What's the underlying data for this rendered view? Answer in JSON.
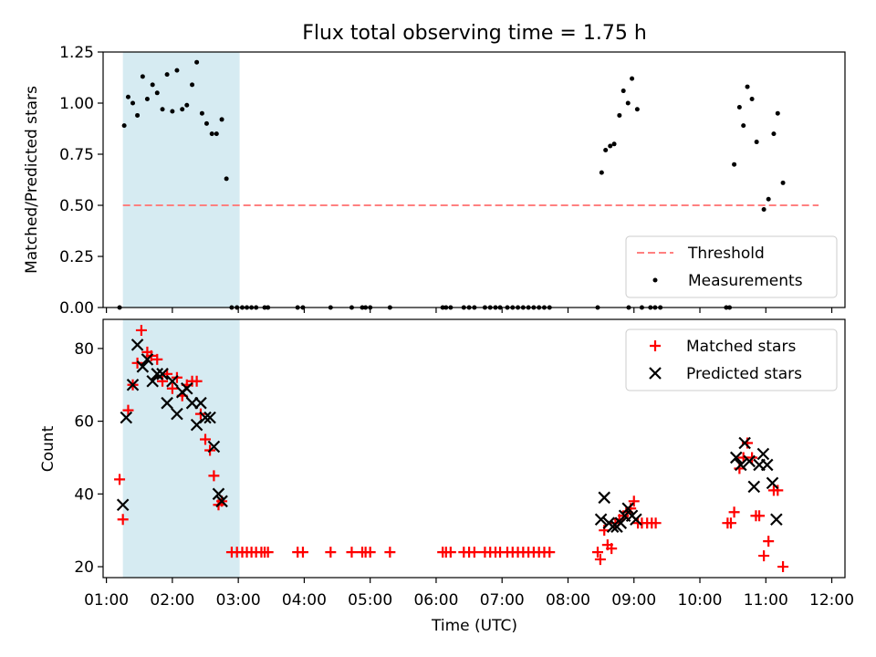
{
  "title": "Flux total observing time = 1.75 h",
  "x_axis": {
    "label": "Time (UTC)",
    "range_hours": [
      0.95,
      12.2
    ],
    "ticks": [
      {
        "value": 1,
        "label": "01:00"
      },
      {
        "value": 2,
        "label": "02:00"
      },
      {
        "value": 3,
        "label": "03:00"
      },
      {
        "value": 4,
        "label": "04:00"
      },
      {
        "value": 5,
        "label": "05:00"
      },
      {
        "value": 6,
        "label": "06:00"
      },
      {
        "value": 7,
        "label": "07:00"
      },
      {
        "value": 8,
        "label": "08:00"
      },
      {
        "value": 9,
        "label": "09:00"
      },
      {
        "value": 10,
        "label": "10:00"
      },
      {
        "value": 11,
        "label": "11:00"
      },
      {
        "value": 12,
        "label": "12:00"
      }
    ]
  },
  "observing_window_hours": [
    1.25,
    3.02
  ],
  "colors": {
    "window": "#add8e6",
    "threshold": "#ff8080",
    "measurements": "#000000",
    "matched": "#ff0000",
    "predicted": "#000000"
  },
  "chart_data": [
    {
      "type": "scatter",
      "ylabel": "Matched/Predicted stars",
      "ylim": [
        0,
        1.25
      ],
      "yticks": [
        {
          "value": 0,
          "label": "0.00"
        },
        {
          "value": 0.25,
          "label": "0.25"
        },
        {
          "value": 0.5,
          "label": "0.50"
        },
        {
          "value": 0.75,
          "label": "0.75"
        },
        {
          "value": 1.0,
          "label": "1.00"
        },
        {
          "value": 1.25,
          "label": "1.25"
        }
      ],
      "threshold": {
        "value": 0.5,
        "x_range": [
          1.25,
          11.8
        ]
      },
      "legend": {
        "position": "lower right",
        "entries": [
          "Threshold",
          "Measurements"
        ]
      },
      "series": [
        {
          "name": "Measurements",
          "points": [
            [
              1.2,
              0.0
            ],
            [
              1.27,
              0.89
            ],
            [
              1.33,
              1.03
            ],
            [
              1.4,
              1.0
            ],
            [
              1.47,
              0.94
            ],
            [
              1.55,
              1.13
            ],
            [
              1.62,
              1.02
            ],
            [
              1.7,
              1.09
            ],
            [
              1.77,
              1.05
            ],
            [
              1.85,
              0.97
            ],
            [
              1.92,
              1.14
            ],
            [
              2.0,
              0.96
            ],
            [
              2.07,
              1.16
            ],
            [
              2.15,
              0.97
            ],
            [
              2.22,
              0.99
            ],
            [
              2.3,
              1.09
            ],
            [
              2.37,
              1.2
            ],
            [
              2.45,
              0.95
            ],
            [
              2.52,
              0.9
            ],
            [
              2.6,
              0.85
            ],
            [
              2.67,
              0.85
            ],
            [
              2.75,
              0.92
            ],
            [
              2.82,
              0.63
            ],
            [
              2.9,
              0.0
            ],
            [
              2.98,
              0.0
            ],
            [
              3.06,
              0.0
            ],
            [
              3.13,
              0.0
            ],
            [
              3.2,
              0.0
            ],
            [
              3.27,
              0.0
            ],
            [
              3.4,
              0.0
            ],
            [
              3.45,
              0.0
            ],
            [
              3.9,
              0.0
            ],
            [
              3.98,
              0.0
            ],
            [
              4.4,
              0.0
            ],
            [
              4.72,
              0.0
            ],
            [
              4.88,
              0.0
            ],
            [
              4.93,
              0.0
            ],
            [
              5.0,
              0.0
            ],
            [
              5.3,
              0.0
            ],
            [
              6.1,
              0.0
            ],
            [
              6.15,
              0.0
            ],
            [
              6.22,
              0.0
            ],
            [
              6.42,
              0.0
            ],
            [
              6.5,
              0.0
            ],
            [
              6.58,
              0.0
            ],
            [
              6.74,
              0.0
            ],
            [
              6.82,
              0.0
            ],
            [
              6.9,
              0.0
            ],
            [
              6.97,
              0.0
            ],
            [
              7.08,
              0.0
            ],
            [
              7.16,
              0.0
            ],
            [
              7.24,
              0.0
            ],
            [
              7.32,
              0.0
            ],
            [
              7.4,
              0.0
            ],
            [
              7.48,
              0.0
            ],
            [
              7.56,
              0.0
            ],
            [
              7.64,
              0.0
            ],
            [
              7.72,
              0.0
            ],
            [
              8.45,
              0.0
            ],
            [
              8.51,
              0.66
            ],
            [
              8.57,
              0.77
            ],
            [
              8.64,
              0.79
            ],
            [
              8.7,
              0.8
            ],
            [
              8.78,
              0.94
            ],
            [
              8.84,
              1.06
            ],
            [
              8.91,
              1.0
            ],
            [
              8.97,
              1.12
            ],
            [
              9.05,
              0.97
            ],
            [
              8.92,
              0.0
            ],
            [
              9.12,
              0.0
            ],
            [
              9.25,
              0.0
            ],
            [
              9.32,
              0.0
            ],
            [
              9.4,
              0.0
            ],
            [
              10.4,
              0.0
            ],
            [
              10.45,
              0.0
            ],
            [
              10.52,
              0.7
            ],
            [
              10.6,
              0.98
            ],
            [
              10.66,
              0.89
            ],
            [
              10.72,
              1.08
            ],
            [
              10.79,
              1.02
            ],
            [
              10.86,
              0.81
            ],
            [
              10.97,
              0.48
            ],
            [
              11.04,
              0.53
            ],
            [
              11.12,
              0.85
            ],
            [
              11.18,
              0.95
            ],
            [
              11.26,
              0.61
            ]
          ]
        }
      ]
    },
    {
      "type": "scatter",
      "ylabel": "Count",
      "ylim": [
        17,
        88
      ],
      "yticks": [
        {
          "value": 20,
          "label": "20"
        },
        {
          "value": 40,
          "label": "40"
        },
        {
          "value": 60,
          "label": "60"
        },
        {
          "value": 80,
          "label": "80"
        }
      ],
      "legend": {
        "position": "upper right",
        "entries": [
          "Matched stars",
          "Predicted stars"
        ]
      },
      "series": [
        {
          "name": "Matched stars",
          "marker": "plus",
          "points": [
            [
              1.2,
              44
            ],
            [
              1.25,
              33
            ],
            [
              1.33,
              63
            ],
            [
              1.4,
              70
            ],
            [
              1.47,
              76
            ],
            [
              1.53,
              85
            ],
            [
              1.62,
              79
            ],
            [
              1.68,
              78
            ],
            [
              1.77,
              77
            ],
            [
              1.85,
              71
            ],
            [
              1.92,
              73
            ],
            [
              2.0,
              69
            ],
            [
              2.07,
              72
            ],
            [
              2.15,
              67
            ],
            [
              2.22,
              70
            ],
            [
              2.3,
              71
            ],
            [
              2.37,
              71
            ],
            [
              2.43,
              62
            ],
            [
              2.5,
              55
            ],
            [
              2.57,
              52
            ],
            [
              2.63,
              45
            ],
            [
              2.7,
              37
            ],
            [
              2.75,
              38
            ],
            [
              2.9,
              24
            ],
            [
              2.98,
              24
            ],
            [
              3.06,
              24
            ],
            [
              3.13,
              24
            ],
            [
              3.2,
              24
            ],
            [
              3.27,
              24
            ],
            [
              3.35,
              24
            ],
            [
              3.4,
              24
            ],
            [
              3.45,
              24
            ],
            [
              3.9,
              24
            ],
            [
              3.98,
              24
            ],
            [
              4.4,
              24
            ],
            [
              4.72,
              24
            ],
            [
              4.88,
              24
            ],
            [
              4.93,
              24
            ],
            [
              5.0,
              24
            ],
            [
              5.3,
              24
            ],
            [
              6.1,
              24
            ],
            [
              6.15,
              24
            ],
            [
              6.22,
              24
            ],
            [
              6.42,
              24
            ],
            [
              6.5,
              24
            ],
            [
              6.58,
              24
            ],
            [
              6.74,
              24
            ],
            [
              6.82,
              24
            ],
            [
              6.9,
              24
            ],
            [
              6.97,
              24
            ],
            [
              7.08,
              24
            ],
            [
              7.16,
              24
            ],
            [
              7.24,
              24
            ],
            [
              7.32,
              24
            ],
            [
              7.4,
              24
            ],
            [
              7.48,
              24
            ],
            [
              7.56,
              24
            ],
            [
              7.64,
              24
            ],
            [
              7.72,
              24
            ],
            [
              8.45,
              24
            ],
            [
              8.49,
              22
            ],
            [
              8.55,
              30
            ],
            [
              8.6,
              26
            ],
            [
              8.66,
              25
            ],
            [
              8.72,
              32
            ],
            [
              8.78,
              33
            ],
            [
              8.84,
              34
            ],
            [
              8.9,
              35
            ],
            [
              8.95,
              36
            ],
            [
              9.0,
              38
            ],
            [
              9.06,
              32
            ],
            [
              9.12,
              32
            ],
            [
              9.2,
              32
            ],
            [
              9.27,
              32
            ],
            [
              9.33,
              32
            ],
            [
              10.42,
              32
            ],
            [
              10.47,
              32
            ],
            [
              10.52,
              35
            ],
            [
              10.6,
              47
            ],
            [
              10.66,
              50
            ],
            [
              10.72,
              54
            ],
            [
              10.79,
              50
            ],
            [
              10.85,
              34
            ],
            [
              10.9,
              34
            ],
            [
              10.97,
              23
            ],
            [
              11.04,
              27
            ],
            [
              11.12,
              41
            ],
            [
              11.18,
              41
            ],
            [
              11.26,
              20
            ]
          ]
        },
        {
          "name": "Predicted stars",
          "marker": "x",
          "points": [
            [
              1.25,
              37
            ],
            [
              1.3,
              61
            ],
            [
              1.4,
              70
            ],
            [
              1.47,
              81
            ],
            [
              1.55,
              75
            ],
            [
              1.62,
              77
            ],
            [
              1.7,
              71
            ],
            [
              1.77,
              73
            ],
            [
              1.85,
              73
            ],
            [
              1.92,
              65
            ],
            [
              2.0,
              71
            ],
            [
              2.07,
              62
            ],
            [
              2.15,
              68
            ],
            [
              2.22,
              69
            ],
            [
              2.3,
              65
            ],
            [
              2.37,
              59
            ],
            [
              2.43,
              65
            ],
            [
              2.5,
              61
            ],
            [
              2.57,
              61
            ],
            [
              2.63,
              53
            ],
            [
              2.7,
              40
            ],
            [
              2.75,
              38
            ],
            [
              8.5,
              33
            ],
            [
              8.55,
              39
            ],
            [
              8.62,
              32
            ],
            [
              8.68,
              31
            ],
            [
              8.74,
              31
            ],
            [
              8.8,
              32
            ],
            [
              8.86,
              34
            ],
            [
              8.91,
              36
            ],
            [
              8.97,
              34
            ],
            [
              9.03,
              33
            ],
            [
              10.55,
              50
            ],
            [
              10.62,
              48
            ],
            [
              10.68,
              54
            ],
            [
              10.75,
              49
            ],
            [
              10.82,
              42
            ],
            [
              10.9,
              48
            ],
            [
              10.96,
              51
            ],
            [
              11.02,
              48
            ],
            [
              11.1,
              43
            ],
            [
              11.16,
              33
            ]
          ]
        }
      ]
    }
  ]
}
